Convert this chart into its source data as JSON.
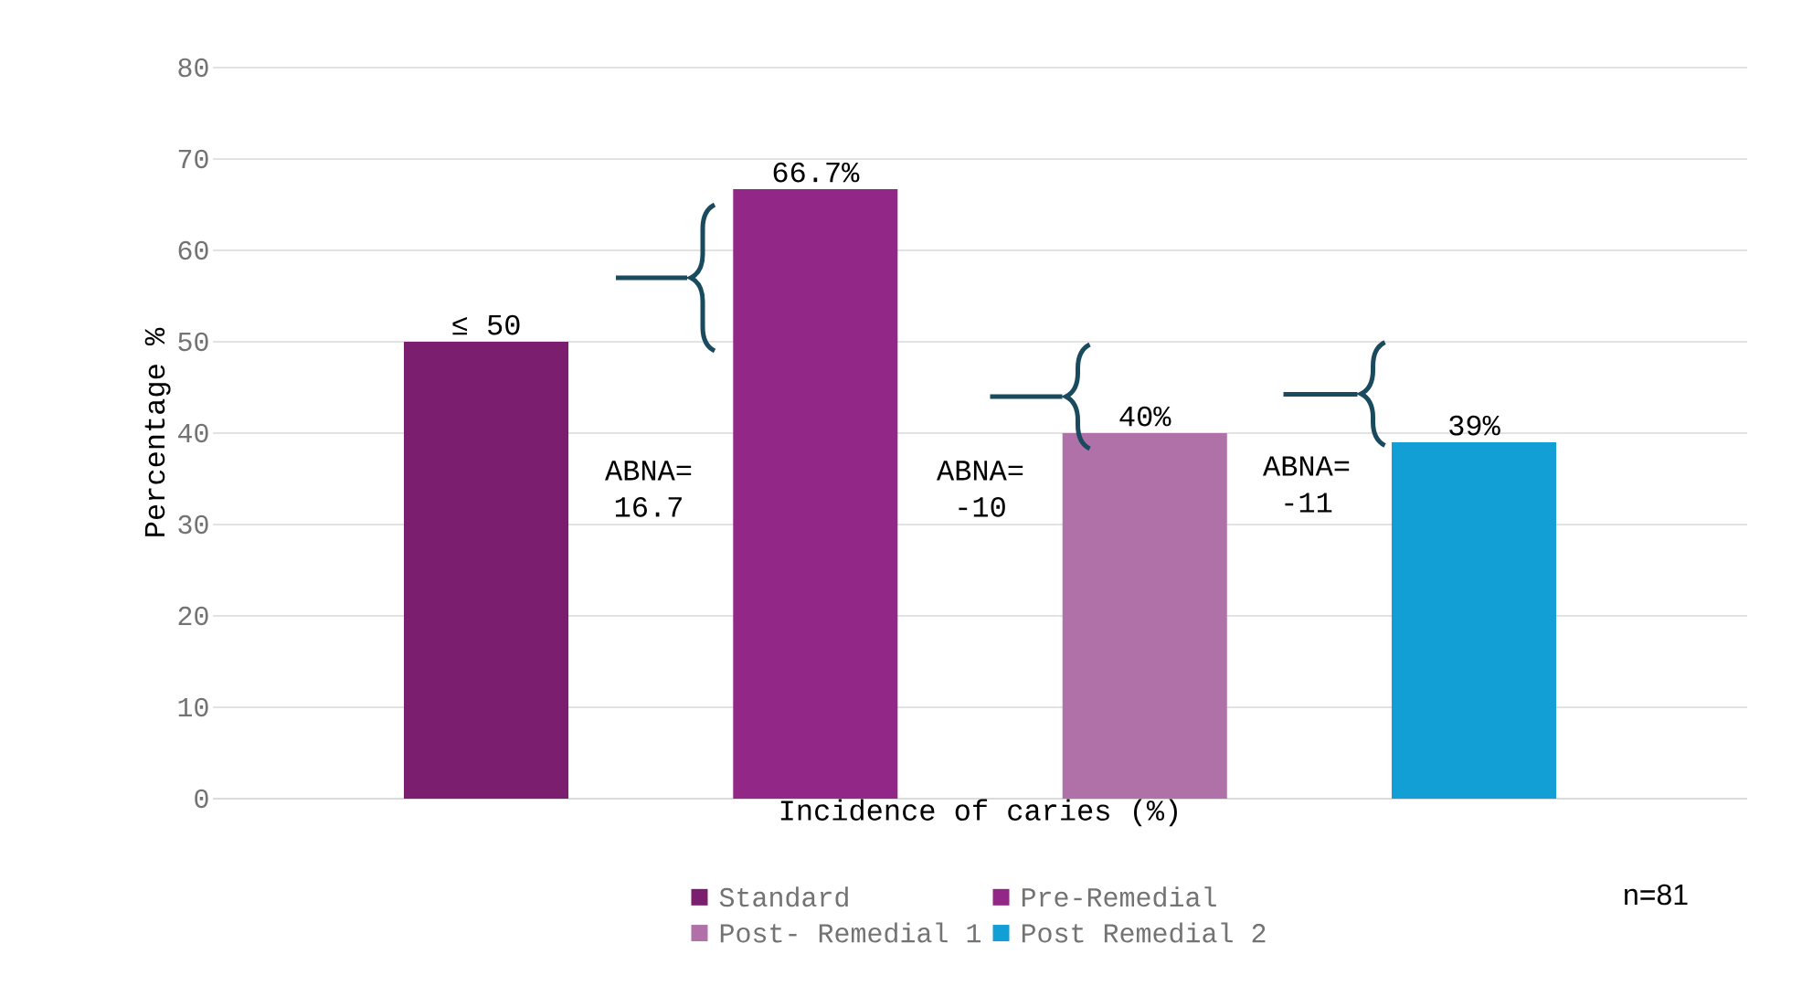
{
  "chart_data": {
    "type": "bar",
    "xlabel": "Incidence of caries (%)",
    "ylabel": "Percentage %",
    "categories": [
      null
    ],
    "series": [
      {
        "name": "Standard",
        "color": "#7b1e6f",
        "values": [
          50
        ],
        "value_labels": [
          "≤ 50"
        ]
      },
      {
        "name": "Pre-Remedial",
        "color": "#922788",
        "values": [
          66.7
        ],
        "value_labels": [
          "66.7%"
        ]
      },
      {
        "name": "Post- Remedial 1",
        "color": "#b071a8",
        "values": [
          40
        ],
        "value_labels": [
          "40%"
        ]
      },
      {
        "name": "Post Remedial 2",
        "color": "#119fd6",
        "values": [
          39
        ],
        "value_labels": [
          "39%"
        ]
      }
    ],
    "ylim": [
      0,
      80
    ],
    "yticks": [
      0,
      10,
      20,
      30,
      40,
      50,
      60,
      70,
      80
    ],
    "grid": "y",
    "legend": "bottom",
    "annotations": [
      "ABNA= 16.7",
      "ABNA= -10",
      "ABNA= -11",
      "n=81"
    ]
  }
}
